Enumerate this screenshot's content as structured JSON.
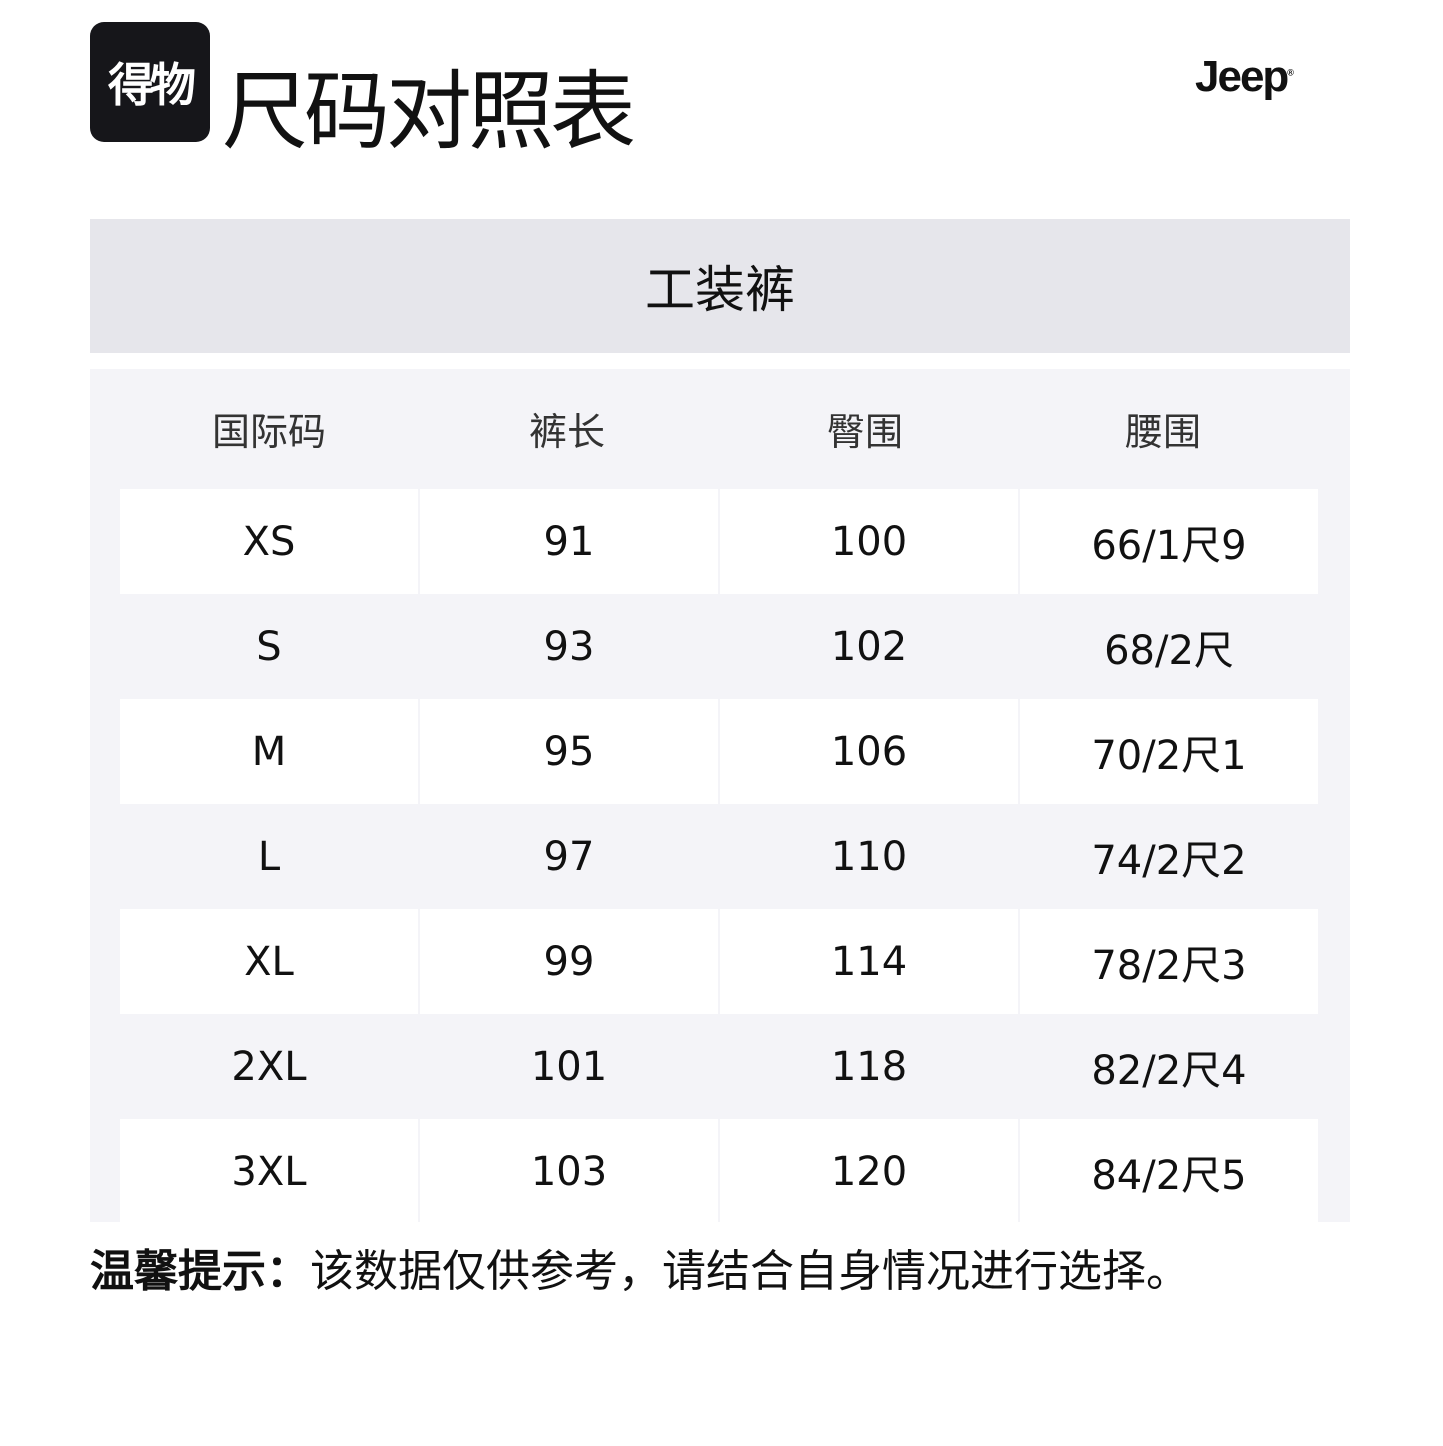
{
  "logo": "得物",
  "title": "尺码对照表",
  "brand": "Jeep",
  "category": "工装裤",
  "table": {
    "headers": [
      "国际码",
      "裤长",
      "臀围",
      "腰围"
    ],
    "rows": [
      [
        "XS",
        "91",
        "100",
        "66/1尺9"
      ],
      [
        "S",
        "93",
        "102",
        "68/2尺"
      ],
      [
        "M",
        "95",
        "106",
        "70/2尺1"
      ],
      [
        "L",
        "97",
        "110",
        "74/2尺2"
      ],
      [
        "XL",
        "99",
        "114",
        "78/2尺3"
      ],
      [
        "2XL",
        "101",
        "118",
        "82/2尺4"
      ],
      [
        "3XL",
        "103",
        "120",
        "84/2尺5"
      ]
    ]
  },
  "note": {
    "label": "温馨提示：",
    "text": "该数据仅供参考，请结合自身情况进行选择。"
  }
}
